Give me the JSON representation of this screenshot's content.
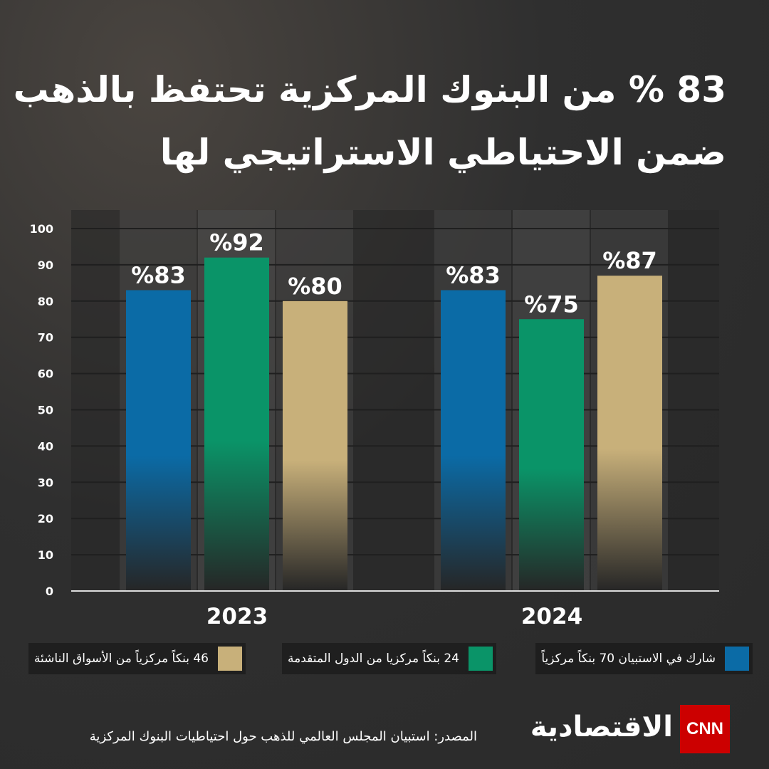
{
  "chart_data": {
    "type": "bar",
    "title": [
      "83 % من البنوك المركزية تحتفظ بالذهب",
      "ضمن الاحتياطي الاستراتيجي لها"
    ],
    "categories": [
      "2023",
      "2024"
    ],
    "series": [
      {
        "name": "شارك في الاستبيان 70 بنكاً مركزياً",
        "color": "#0b6ba6",
        "values": [
          83,
          83
        ],
        "value_labels": [
          "%83",
          "%83"
        ]
      },
      {
        "name": "24 بنكاً مركزيا من الدول المتقدمة",
        "color": "#0a9468",
        "values": [
          92,
          75
        ],
        "value_labels": [
          "%92",
          "%75"
        ]
      },
      {
        "name": "46 بنكاً مركزياً من الأسواق الناشئة",
        "color": "#c8b07a",
        "values": [
          80,
          87
        ],
        "value_labels": [
          "%80",
          "%87"
        ]
      }
    ],
    "ylim": [
      0,
      100
    ],
    "yticks": [
      0,
      10,
      20,
      30,
      40,
      50,
      60,
      70,
      80,
      90,
      100
    ],
    "grid": true,
    "source": "المصدر: استبيان المجلس العالمي للذهب حول احتياطيات البنوك المركزية"
  },
  "logo": {
    "brand": "CNN",
    "name": "الاقتصادية"
  }
}
